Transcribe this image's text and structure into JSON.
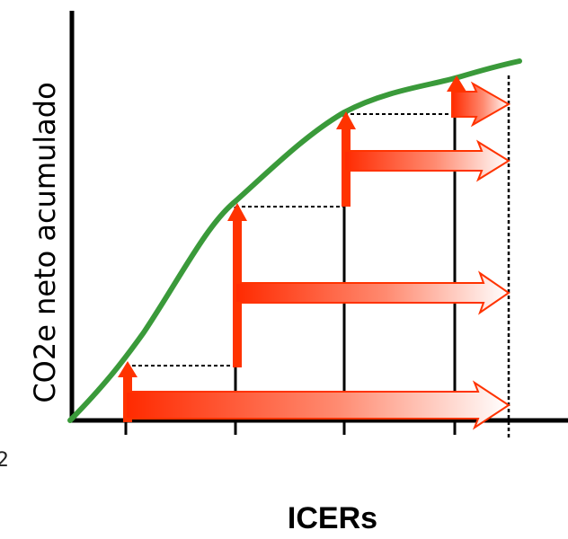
{
  "labels": {
    "y_axis": "CO2e neto acumulado",
    "x_axis": "ICERs",
    "edge_fragment": "2"
  },
  "colors": {
    "curve": "#3a9a3a",
    "arrow": "#ff3300",
    "axis": "#000000"
  }
}
